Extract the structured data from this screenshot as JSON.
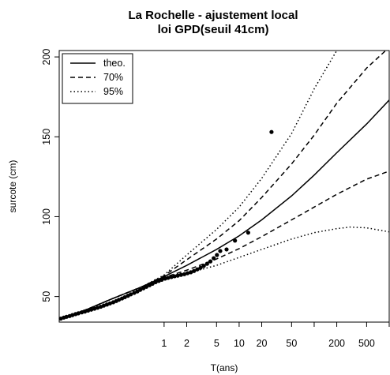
{
  "chart_data": {
    "type": "line",
    "title_line1": "La Rochelle - ajustement local",
    "title_line2": "loi GPD(seuil 41cm)",
    "xlabel": "T(ans)",
    "ylabel": "surcote (cm)",
    "x_scale": "log",
    "xlim": [
      0.04,
      1000
    ],
    "ylim": [
      34,
      204
    ],
    "x_ticks": [
      1,
      2,
      5,
      10,
      20,
      50,
      200,
      500
    ],
    "x_tick_marks": [
      1,
      2,
      5,
      10,
      20,
      50,
      100,
      200,
      500,
      1000
    ],
    "y_ticks": [
      50,
      100,
      150,
      200
    ],
    "legend_position": "top-left",
    "series": [
      {
        "name": "theo.",
        "style": "solid",
        "points": [
          [
            0.04,
            35.5
          ],
          [
            0.1,
            42.5
          ],
          [
            0.2,
            48.5
          ],
          [
            0.5,
            56
          ],
          [
            1,
            62.5
          ],
          [
            2,
            69.5
          ],
          [
            5,
            79.5
          ],
          [
            10,
            88
          ],
          [
            20,
            98
          ],
          [
            50,
            113
          ],
          [
            100,
            126
          ],
          [
            200,
            140
          ],
          [
            500,
            158
          ],
          [
            1000,
            173
          ]
        ]
      },
      {
        "name": "70%",
        "style": "dashed",
        "points": [
          [
            0.04,
            35.5
          ],
          [
            0.1,
            42.5
          ],
          [
            0.2,
            48.5
          ],
          [
            0.5,
            56
          ],
          [
            1,
            63
          ],
          [
            2,
            73
          ],
          [
            5,
            86
          ],
          [
            10,
            97.5
          ],
          [
            20,
            112
          ],
          [
            50,
            133
          ],
          [
            100,
            151
          ],
          [
            200,
            171
          ],
          [
            500,
            193
          ],
          [
            1000,
            206
          ]
        ]
      },
      {
        "name": "70%",
        "style": "dashed",
        "points": [
          [
            0.04,
            35.5
          ],
          [
            0.1,
            42.5
          ],
          [
            0.2,
            48.5
          ],
          [
            0.5,
            56
          ],
          [
            1,
            62
          ],
          [
            2,
            66.5
          ],
          [
            5,
            73.5
          ],
          [
            10,
            80
          ],
          [
            20,
            87.5
          ],
          [
            50,
            98
          ],
          [
            100,
            106
          ],
          [
            200,
            114
          ],
          [
            500,
            123.5
          ],
          [
            1000,
            128.5
          ]
        ]
      },
      {
        "name": "95%",
        "style": "dotted",
        "points": [
          [
            0.04,
            35.5
          ],
          [
            0.1,
            42.5
          ],
          [
            0.2,
            48.5
          ],
          [
            0.5,
            56
          ],
          [
            1,
            63.5
          ],
          [
            2,
            76
          ],
          [
            5,
            92
          ],
          [
            10,
            106
          ],
          [
            20,
            124
          ],
          [
            50,
            152
          ],
          [
            100,
            180
          ],
          [
            200,
            204
          ]
        ]
      },
      {
        "name": "95%",
        "style": "dotted",
        "points": [
          [
            0.04,
            35.5
          ],
          [
            0.1,
            42.5
          ],
          [
            0.2,
            48.5
          ],
          [
            0.5,
            56
          ],
          [
            1,
            61
          ],
          [
            2,
            64.5
          ],
          [
            5,
            69.5
          ],
          [
            10,
            74.5
          ],
          [
            20,
            79.5
          ],
          [
            50,
            86
          ],
          [
            100,
            90
          ],
          [
            200,
            92.5
          ],
          [
            300,
            93.5
          ],
          [
            500,
            93
          ],
          [
            1000,
            90.5
          ]
        ]
      }
    ],
    "observations": [
      [
        0.042,
        36.2
      ],
      [
        0.046,
        36.8
      ],
      [
        0.05,
        37.3
      ],
      [
        0.055,
        37.8
      ],
      [
        0.06,
        38.4
      ],
      [
        0.066,
        39
      ],
      [
        0.072,
        39.5
      ],
      [
        0.08,
        40.1
      ],
      [
        0.088,
        40.6
      ],
      [
        0.097,
        41.2
      ],
      [
        0.107,
        41.8
      ],
      [
        0.118,
        42.4
      ],
      [
        0.13,
        43
      ],
      [
        0.143,
        43.6
      ],
      [
        0.157,
        44.3
      ],
      [
        0.173,
        45
      ],
      [
        0.19,
        45.7
      ],
      [
        0.21,
        46.4
      ],
      [
        0.23,
        47.2
      ],
      [
        0.25,
        48
      ],
      [
        0.275,
        48.8
      ],
      [
        0.3,
        49.6
      ],
      [
        0.33,
        50.5
      ],
      [
        0.36,
        51.4
      ],
      [
        0.4,
        52.3
      ],
      [
        0.44,
        53.2
      ],
      [
        0.48,
        54.2
      ],
      [
        0.53,
        55.2
      ],
      [
        0.58,
        56.1
      ],
      [
        0.64,
        57.1
      ],
      [
        0.7,
        58
      ],
      [
        0.77,
        59
      ],
      [
        0.85,
        59.8
      ],
      [
        0.93,
        60.5
      ],
      [
        1.03,
        61.2
      ],
      [
        1.13,
        61.7
      ],
      [
        1.25,
        62.2
      ],
      [
        1.38,
        62.7
      ],
      [
        1.52,
        63.1
      ],
      [
        1.68,
        63.6
      ],
      [
        1.86,
        64
      ],
      [
        2.05,
        64.6
      ],
      [
        2.27,
        65.2
      ],
      [
        2.5,
        66
      ],
      [
        2.77,
        67
      ],
      [
        3.06,
        68
      ],
      [
        3.38,
        69.2
      ],
      [
        3.74,
        70.5
      ],
      [
        4.14,
        72
      ],
      [
        4.58,
        74
      ],
      [
        5.06,
        76
      ],
      [
        5.6,
        78.5
      ],
      [
        6.8,
        79.5
      ],
      [
        8.8,
        85
      ],
      [
        13.2,
        90
      ],
      [
        27,
        153
      ]
    ]
  }
}
